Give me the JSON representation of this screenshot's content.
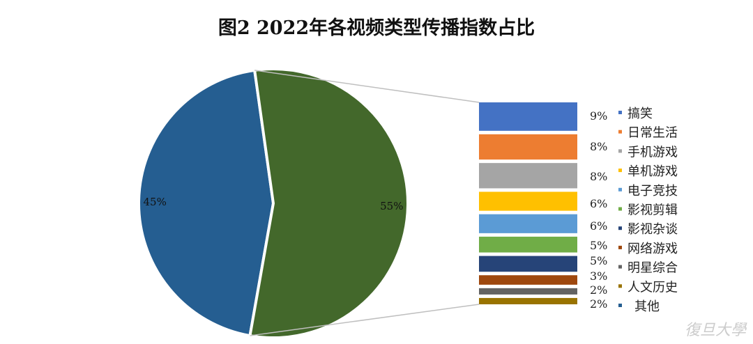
{
  "chart_data": {
    "type": "bar-of-pie",
    "title": "图2 2022年各视频类型传播指数占比",
    "pie": [
      {
        "name": "其他",
        "value": 45,
        "label": "45%",
        "color": "#255e91"
      },
      {
        "name": "",
        "value": 55,
        "label": "55%",
        "color": "#43682b"
      }
    ],
    "bar": [
      {
        "name": "搞笑",
        "value": 9,
        "label": "9%",
        "color": "#4472c4"
      },
      {
        "name": "日常生活",
        "value": 8,
        "label": "8%",
        "color": "#ed7d31"
      },
      {
        "name": "手机游戏",
        "value": 8,
        "label": "8%",
        "color": "#a5a5a5"
      },
      {
        "name": "单机游戏",
        "value": 6,
        "label": "6%",
        "color": "#ffc000"
      },
      {
        "name": "电子竞技",
        "value": 6,
        "label": "6%",
        "color": "#5b9bd5"
      },
      {
        "name": "影视剪辑",
        "value": 5,
        "label": "5%",
        "color": "#70ad47"
      },
      {
        "name": "影视杂谈",
        "value": 5,
        "label": "5%",
        "color": "#264478"
      },
      {
        "name": "网络游戏",
        "value": 3,
        "label": "3%",
        "color": "#9e480e"
      },
      {
        "name": "明星综合",
        "value": 2,
        "label": "2%",
        "color": "#636363"
      },
      {
        "name": "人文历史",
        "value": 2,
        "label": "2%",
        "color": "#997300"
      }
    ],
    "legend": [
      "搞笑",
      "日常生活",
      "手机游戏",
      "单机游戏",
      "电子竞技",
      "影视剪辑",
      "影视杂谈",
      "网络游戏",
      "明星综合",
      "人文历史",
      "其他"
    ],
    "legend_placement": "right"
  },
  "watermark": "复旦大学 FUDAN UNIVERSITY"
}
